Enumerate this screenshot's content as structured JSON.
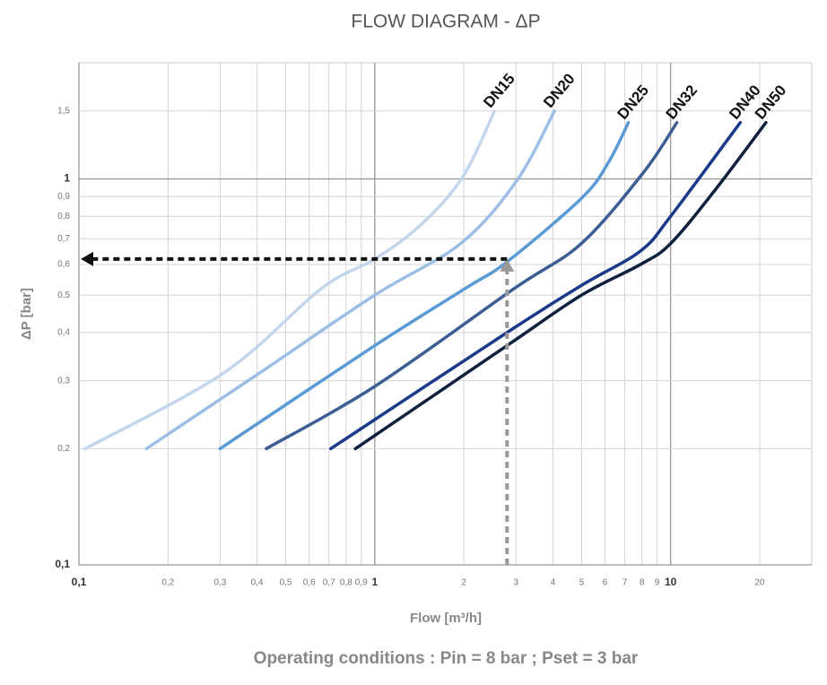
{
  "chart_data": {
    "type": "line",
    "title": "FLOW DIAGRAM - ΔP",
    "x_label": "Flow [m³/h]",
    "y_label": "ΔP [bar]",
    "footer": "Operating conditions : Pin = 8 bar ; Pset = 3 bar",
    "x_scale": "log",
    "y_scale": "log",
    "grid": true,
    "xlim": [
      0.1,
      30
    ],
    "ylim": [
      0.1,
      2
    ],
    "xticks": [
      {
        "value": 0.1,
        "label": "0,1"
      },
      {
        "value": 0.2,
        "label": "0,2"
      },
      {
        "value": 0.3,
        "label": "0,3"
      },
      {
        "value": 0.4,
        "label": "0,4"
      },
      {
        "value": 0.5,
        "label": "0,5"
      },
      {
        "value": 0.6,
        "label": "0,6"
      },
      {
        "value": 0.7,
        "label": "0,7"
      },
      {
        "value": 0.8,
        "label": "0,8"
      },
      {
        "value": 0.9,
        "label": "0,9"
      },
      1,
      2,
      3,
      4,
      5,
      6,
      7,
      8,
      9,
      10,
      20
    ],
    "yticks": [
      {
        "value": 0.1,
        "label": "0,1"
      },
      {
        "value": 0.2,
        "label": "0,2"
      },
      {
        "value": 0.3,
        "label": "0,3"
      },
      {
        "value": 0.4,
        "label": "0,4"
      },
      {
        "value": 0.5,
        "label": "0,5"
      },
      {
        "value": 0.6,
        "label": "0,6"
      },
      {
        "value": 0.7,
        "label": "0,7"
      },
      {
        "value": 0.8,
        "label": "0,8"
      },
      {
        "value": 0.9,
        "label": "0,9"
      },
      1,
      {
        "value": 1.5,
        "label": "1,5"
      }
    ],
    "series": [
      {
        "name": "DN15",
        "color": "#c4d6ec",
        "x": [
          0.105,
          0.31,
          0.66,
          1,
          1.43,
          1.98,
          2.54
        ],
        "values": [
          0.2,
          0.315,
          0.52,
          0.62,
          0.76,
          1.01,
          1.5
        ]
      },
      {
        "name": "DN20",
        "color": "#9dbfe5",
        "x": [
          0.169,
          0.41,
          1,
          1.95,
          3.02,
          4.05
        ],
        "values": [
          0.2,
          0.315,
          0.5,
          0.68,
          0.99,
          1.5
        ]
      },
      {
        "name": "DN25",
        "color": "#5b9bd5",
        "x": [
          0.3,
          1,
          2.02,
          2.8,
          4.99,
          6.15,
          7.2
        ],
        "values": [
          0.2,
          0.37,
          0.52,
          0.61,
          0.89,
          1.1,
          1.4
        ]
      },
      {
        "name": "DN32",
        "color": "#3c5e95",
        "x": [
          0.43,
          1,
          2.96,
          4.99,
          8.1,
          10.5
        ],
        "values": [
          0.2,
          0.29,
          0.52,
          0.68,
          1.04,
          1.4
        ]
      },
      {
        "name": "DN40",
        "color": "#1c3a8a",
        "x": [
          0.71,
          2.8,
          5,
          7.9,
          10,
          17.2
        ],
        "values": [
          0.2,
          0.4,
          0.53,
          0.65,
          0.8,
          1.4
        ]
      },
      {
        "name": "DN50",
        "color": "#10203f",
        "x": [
          0.86,
          2.8,
          5,
          7.9,
          10,
          14.2,
          21
        ],
        "values": [
          0.2,
          0.37,
          0.5,
          0.6,
          0.68,
          0.94,
          1.4
        ]
      }
    ],
    "reading": {
      "x": 2.8,
      "y": 0.62
    }
  }
}
